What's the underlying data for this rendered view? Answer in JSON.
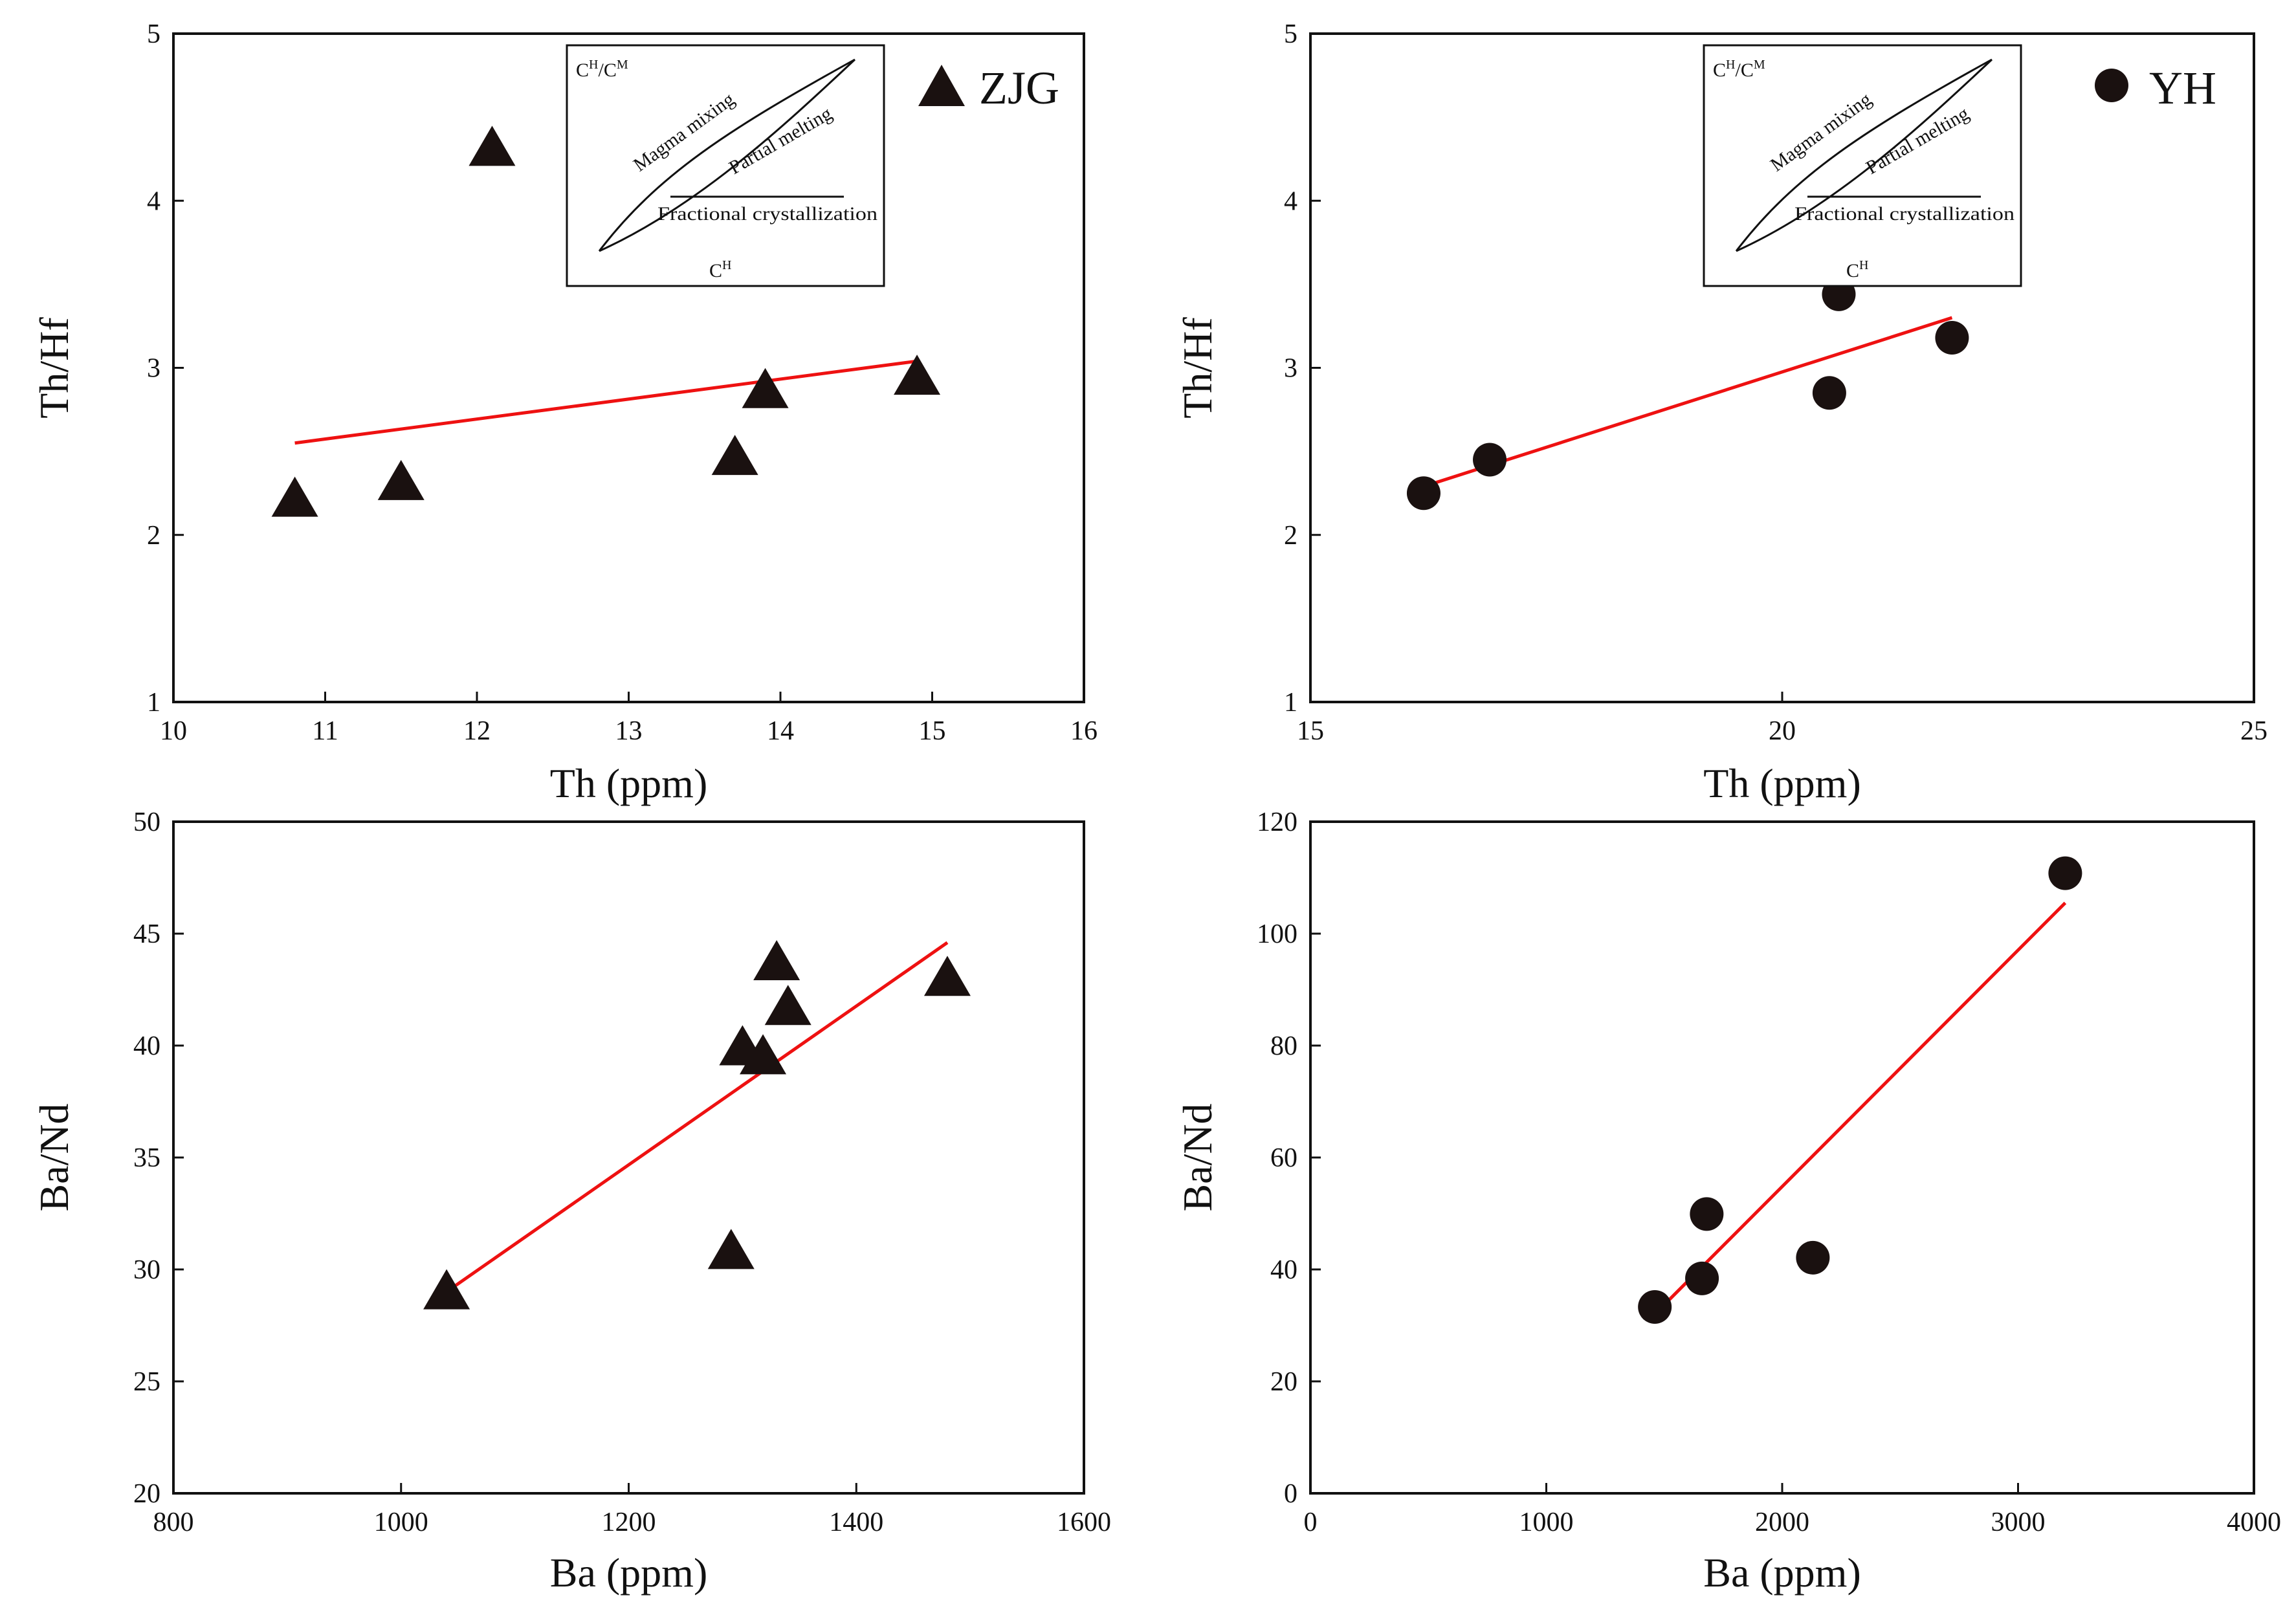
{
  "chart_data": [
    {
      "id": "a",
      "type": "scatter",
      "xlabel": "Th (ppm)",
      "ylabel": "Th/Hf",
      "xlim": [
        10,
        16
      ],
      "ylim": [
        1,
        5
      ],
      "xticks": [
        10,
        11,
        12,
        13,
        14,
        15,
        16
      ],
      "yticks": [
        1,
        2,
        3,
        4,
        5
      ],
      "grid": false,
      "legend": {
        "label": "ZJG",
        "marker": "triangle",
        "placement": "top-right"
      },
      "marker": "triangle",
      "marker_color": "#1a1110",
      "line_color": "#ee1111",
      "points": [
        {
          "x": 10.8,
          "y": 2.2
        },
        {
          "x": 11.5,
          "y": 2.3
        },
        {
          "x": 12.1,
          "y": 4.3
        },
        {
          "x": 13.7,
          "y": 2.45
        },
        {
          "x": 13.9,
          "y": 2.85
        },
        {
          "x": 14.9,
          "y": 2.93
        }
      ],
      "trendline": [
        [
          10.8,
          2.55
        ],
        [
          14.9,
          3.04
        ]
      ],
      "inset": {
        "y_label_base": "C",
        "y_label_sup1": "H",
        "y_label_sep": "/",
        "y_label_sup2": "M",
        "x_label_base": "C",
        "x_label_sup": "H",
        "curves": [
          "Magma mixing",
          "Partial melting",
          "Fractional crystallization"
        ]
      }
    },
    {
      "id": "b",
      "type": "scatter",
      "xlabel": "Th (ppm)",
      "ylabel": "Th/Hf",
      "xlim": [
        15,
        25
      ],
      "ylim": [
        1,
        5
      ],
      "xticks": [
        15,
        20,
        25
      ],
      "yticks": [
        1,
        2,
        3,
        4,
        5
      ],
      "grid": false,
      "legend": {
        "label": "YH",
        "marker": "circle",
        "placement": "top-right"
      },
      "marker": "circle",
      "marker_color": "#1a1110",
      "line_color": "#ee1111",
      "points": [
        {
          "x": 16.2,
          "y": 2.25
        },
        {
          "x": 16.9,
          "y": 2.45
        },
        {
          "x": 20.5,
          "y": 2.85
        },
        {
          "x": 20.6,
          "y": 3.44
        },
        {
          "x": 21.8,
          "y": 3.18
        }
      ],
      "trendline": [
        [
          16.2,
          2.29
        ],
        [
          21.8,
          3.3
        ]
      ],
      "inset": {
        "y_label_base": "C",
        "y_label_sup1": "H",
        "y_label_sep": "/",
        "y_label_sup2": "M",
        "x_label_base": "C",
        "x_label_sup": "H",
        "curves": [
          "Magma mixing",
          "Partial melting",
          "Fractional crystallization"
        ]
      }
    },
    {
      "id": "c",
      "type": "scatter",
      "xlabel": "Ba (ppm)",
      "ylabel": "Ba/Nd",
      "xlim": [
        800,
        1600
      ],
      "ylim": [
        20,
        50
      ],
      "xticks": [
        800,
        1000,
        1200,
        1400,
        1600
      ],
      "yticks": [
        20,
        25,
        30,
        35,
        40,
        45,
        50
      ],
      "grid": false,
      "marker": "triangle",
      "marker_color": "#1a1110",
      "line_color": "#ee1111",
      "points": [
        {
          "x": 1040,
          "y": 28.9
        },
        {
          "x": 1290,
          "y": 30.7
        },
        {
          "x": 1300,
          "y": 39.8
        },
        {
          "x": 1318,
          "y": 39.4
        },
        {
          "x": 1330,
          "y": 43.6
        },
        {
          "x": 1340,
          "y": 41.6
        },
        {
          "x": 1480,
          "y": 42.9
        }
      ],
      "trendline": [
        [
          1040,
          29.0
        ],
        [
          1480,
          44.6
        ]
      ]
    },
    {
      "id": "d",
      "type": "scatter",
      "xlabel": "Ba (ppm)",
      "ylabel": "Ba/Nd",
      "xlim": [
        0,
        4000
      ],
      "ylim": [
        0,
        120
      ],
      "xticks": [
        0,
        1000,
        2000,
        3000,
        4000
      ],
      "yticks": [
        0,
        20,
        40,
        60,
        80,
        100,
        120
      ],
      "grid": false,
      "marker": "circle",
      "marker_color": "#1a1110",
      "line_color": "#ee1111",
      "points": [
        {
          "x": 1460,
          "y": 33.3
        },
        {
          "x": 1660,
          "y": 38.4
        },
        {
          "x": 1680,
          "y": 49.9
        },
        {
          "x": 2130,
          "y": 42.1
        },
        {
          "x": 3200,
          "y": 110.8
        }
      ],
      "trendline": [
        [
          1460,
          32.0
        ],
        [
          3200,
          105.5
        ]
      ]
    }
  ]
}
